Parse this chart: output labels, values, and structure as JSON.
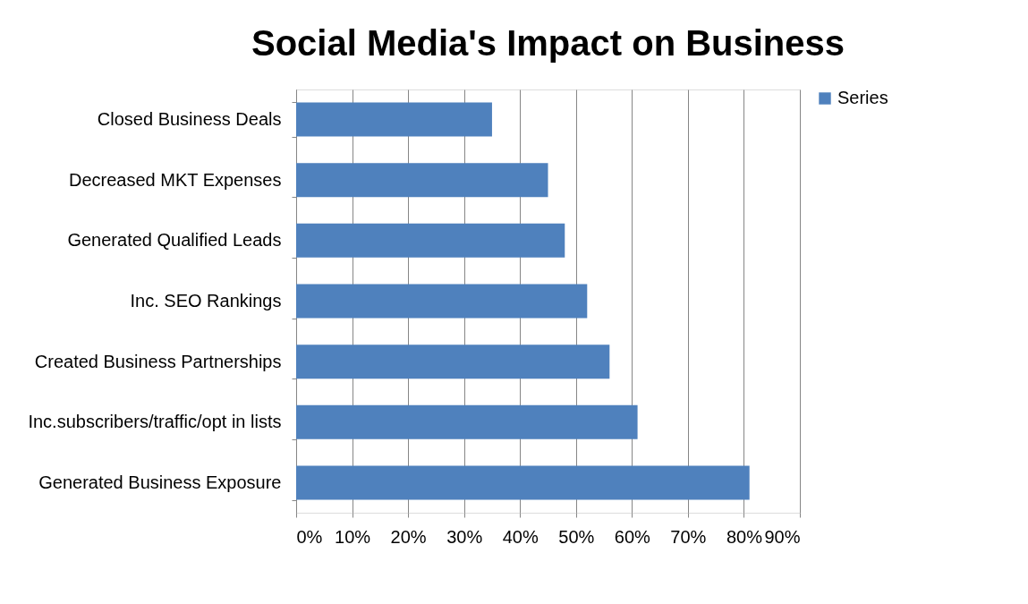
{
  "chart_data": {
    "type": "bar",
    "title": "Social Media's Impact on Business",
    "orientation": "horizontal",
    "categories": [
      "Closed Business Deals",
      "Decreased MKT Expenses",
      "Generated Qualified Leads",
      "Inc. SEO Rankings",
      "Created Business Partnerships",
      "Inc.subscribers/traffic/opt in lists",
      "Generated Business Exposure"
    ],
    "series": [
      {
        "name": "Series",
        "color": "#4f81bd",
        "values": [
          35,
          45,
          48,
          52,
          56,
          61,
          81
        ]
      }
    ],
    "xlim": [
      0,
      90
    ],
    "xticks": [
      {
        "value": 0,
        "label": "0%"
      },
      {
        "value": 10,
        "label": "10%"
      },
      {
        "value": 20,
        "label": "20%"
      },
      {
        "value": 30,
        "label": "30%"
      },
      {
        "value": 40,
        "label": "40%"
      },
      {
        "value": 50,
        "label": "50%"
      },
      {
        "value": 60,
        "label": "60%"
      },
      {
        "value": 70,
        "label": "70%"
      },
      {
        "value": 80,
        "label": "80%"
      },
      {
        "value": 90,
        "label": "90%"
      }
    ],
    "grid": "x",
    "legend": "right"
  }
}
